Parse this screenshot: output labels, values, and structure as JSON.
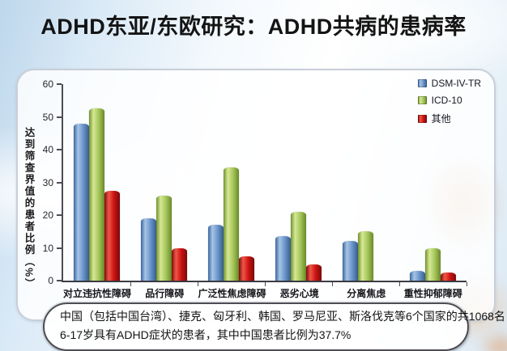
{
  "slide": {
    "title": "ADHD东亚/东欧研究：ADHD共病的患病率"
  },
  "chart_data": {
    "type": "bar",
    "title": "",
    "categories": [
      "对立违抗性障碍",
      "品行障碍",
      "广泛性焦虑障碍",
      "恶劣心境",
      "分离焦虑",
      "重性抑郁障碍"
    ],
    "series": [
      {
        "name": "DSM-IV-TR",
        "color": "#5b8cc4",
        "values": [
          48,
          19,
          17,
          13.5,
          12,
          3
        ]
      },
      {
        "name": "ICD-10",
        "color": "#9cbf4e",
        "values": [
          52.5,
          26,
          34.5,
          21,
          15,
          10
        ]
      },
      {
        "name": "其他",
        "color": "#cc1212",
        "values": [
          27.5,
          10,
          7.5,
          5,
          0,
          2.5
        ]
      }
    ],
    "xlabel": "",
    "ylabel": "达到筛查界值的患者比例（%）",
    "ylim": [
      0,
      60
    ],
    "yticks": [
      0,
      10,
      20,
      30,
      40,
      50,
      60
    ],
    "grid": false,
    "legend_position": "top-right",
    "plot_background": "#ffffff",
    "axis_color": "#4c4c54"
  },
  "callout": {
    "line1": "中国（包括中国台湾）、捷克、匈牙利、韩国、罗马尼亚、斯洛伐克等6个国家的共1068名",
    "line2": "6-17岁具有ADHD症状的患者，其中中国患者比例为37.7%"
  }
}
